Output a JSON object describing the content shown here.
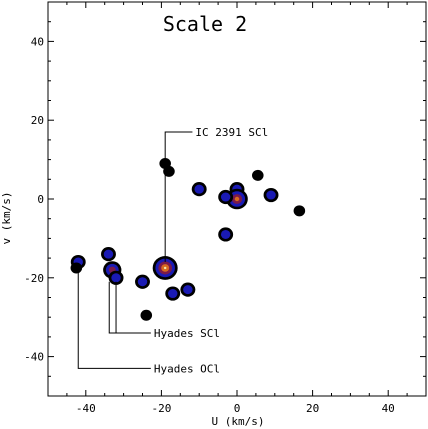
{
  "chart_data": {
    "type": "contour",
    "title": "Scale 2",
    "xlabel": "U (km/s)",
    "ylabel": "v (km/s)",
    "xlim": [
      -50,
      50
    ],
    "ylim": [
      -50,
      50
    ],
    "xticks": [
      -40,
      -20,
      0,
      20,
      40
    ],
    "yticks": [
      -40,
      -20,
      0,
      20,
      40
    ],
    "grid": false,
    "level_colors": [
      "#000000",
      "#1a1ab4",
      "#7a1a4a",
      "#d86a20",
      "#f0e8b0"
    ],
    "clumps": [
      {
        "u": -42,
        "v": -16,
        "levels": 2
      },
      {
        "u": -42.5,
        "v": -17.5,
        "levels": 1
      },
      {
        "u": -34,
        "v": -14,
        "levels": 2
      },
      {
        "u": -33,
        "v": -18,
        "levels": 3
      },
      {
        "u": -32,
        "v": -20,
        "levels": 2
      },
      {
        "u": -25,
        "v": -21,
        "levels": 2
      },
      {
        "u": -24,
        "v": -29.5,
        "levels": 1
      },
      {
        "u": -19,
        "v": -17.5,
        "levels": 5
      },
      {
        "u": -17,
        "v": -24,
        "levels": 2
      },
      {
        "u": -13,
        "v": -23,
        "levels": 2
      },
      {
        "u": -19,
        "v": 9,
        "levels": 1
      },
      {
        "u": -18,
        "v": 7,
        "levels": 1
      },
      {
        "u": -10,
        "v": 2.5,
        "levels": 2
      },
      {
        "u": -3,
        "v": -9,
        "levels": 2
      },
      {
        "u": 0,
        "v": 2.5,
        "levels": 2
      },
      {
        "u": 0,
        "v": 0,
        "levels": 4
      },
      {
        "u": -3,
        "v": 0.5,
        "levels": 2
      },
      {
        "u": 5.5,
        "v": 6,
        "levels": 1
      },
      {
        "u": 9,
        "v": 1,
        "levels": 2
      },
      {
        "u": 16.5,
        "v": -3,
        "levels": 1
      }
    ],
    "annotations": [
      {
        "text": "IC 2391 SCl",
        "u": -19,
        "v": -17.5,
        "label_u": -11,
        "label_v": 17
      },
      {
        "text": "Hyades SCl",
        "u": -32,
        "v": -20,
        "label_u": -22,
        "label_v": -34
      },
      {
        "text": "Hyades OCl",
        "u": -42,
        "v": -17,
        "label_u": -22,
        "label_v": -43
      }
    ]
  }
}
